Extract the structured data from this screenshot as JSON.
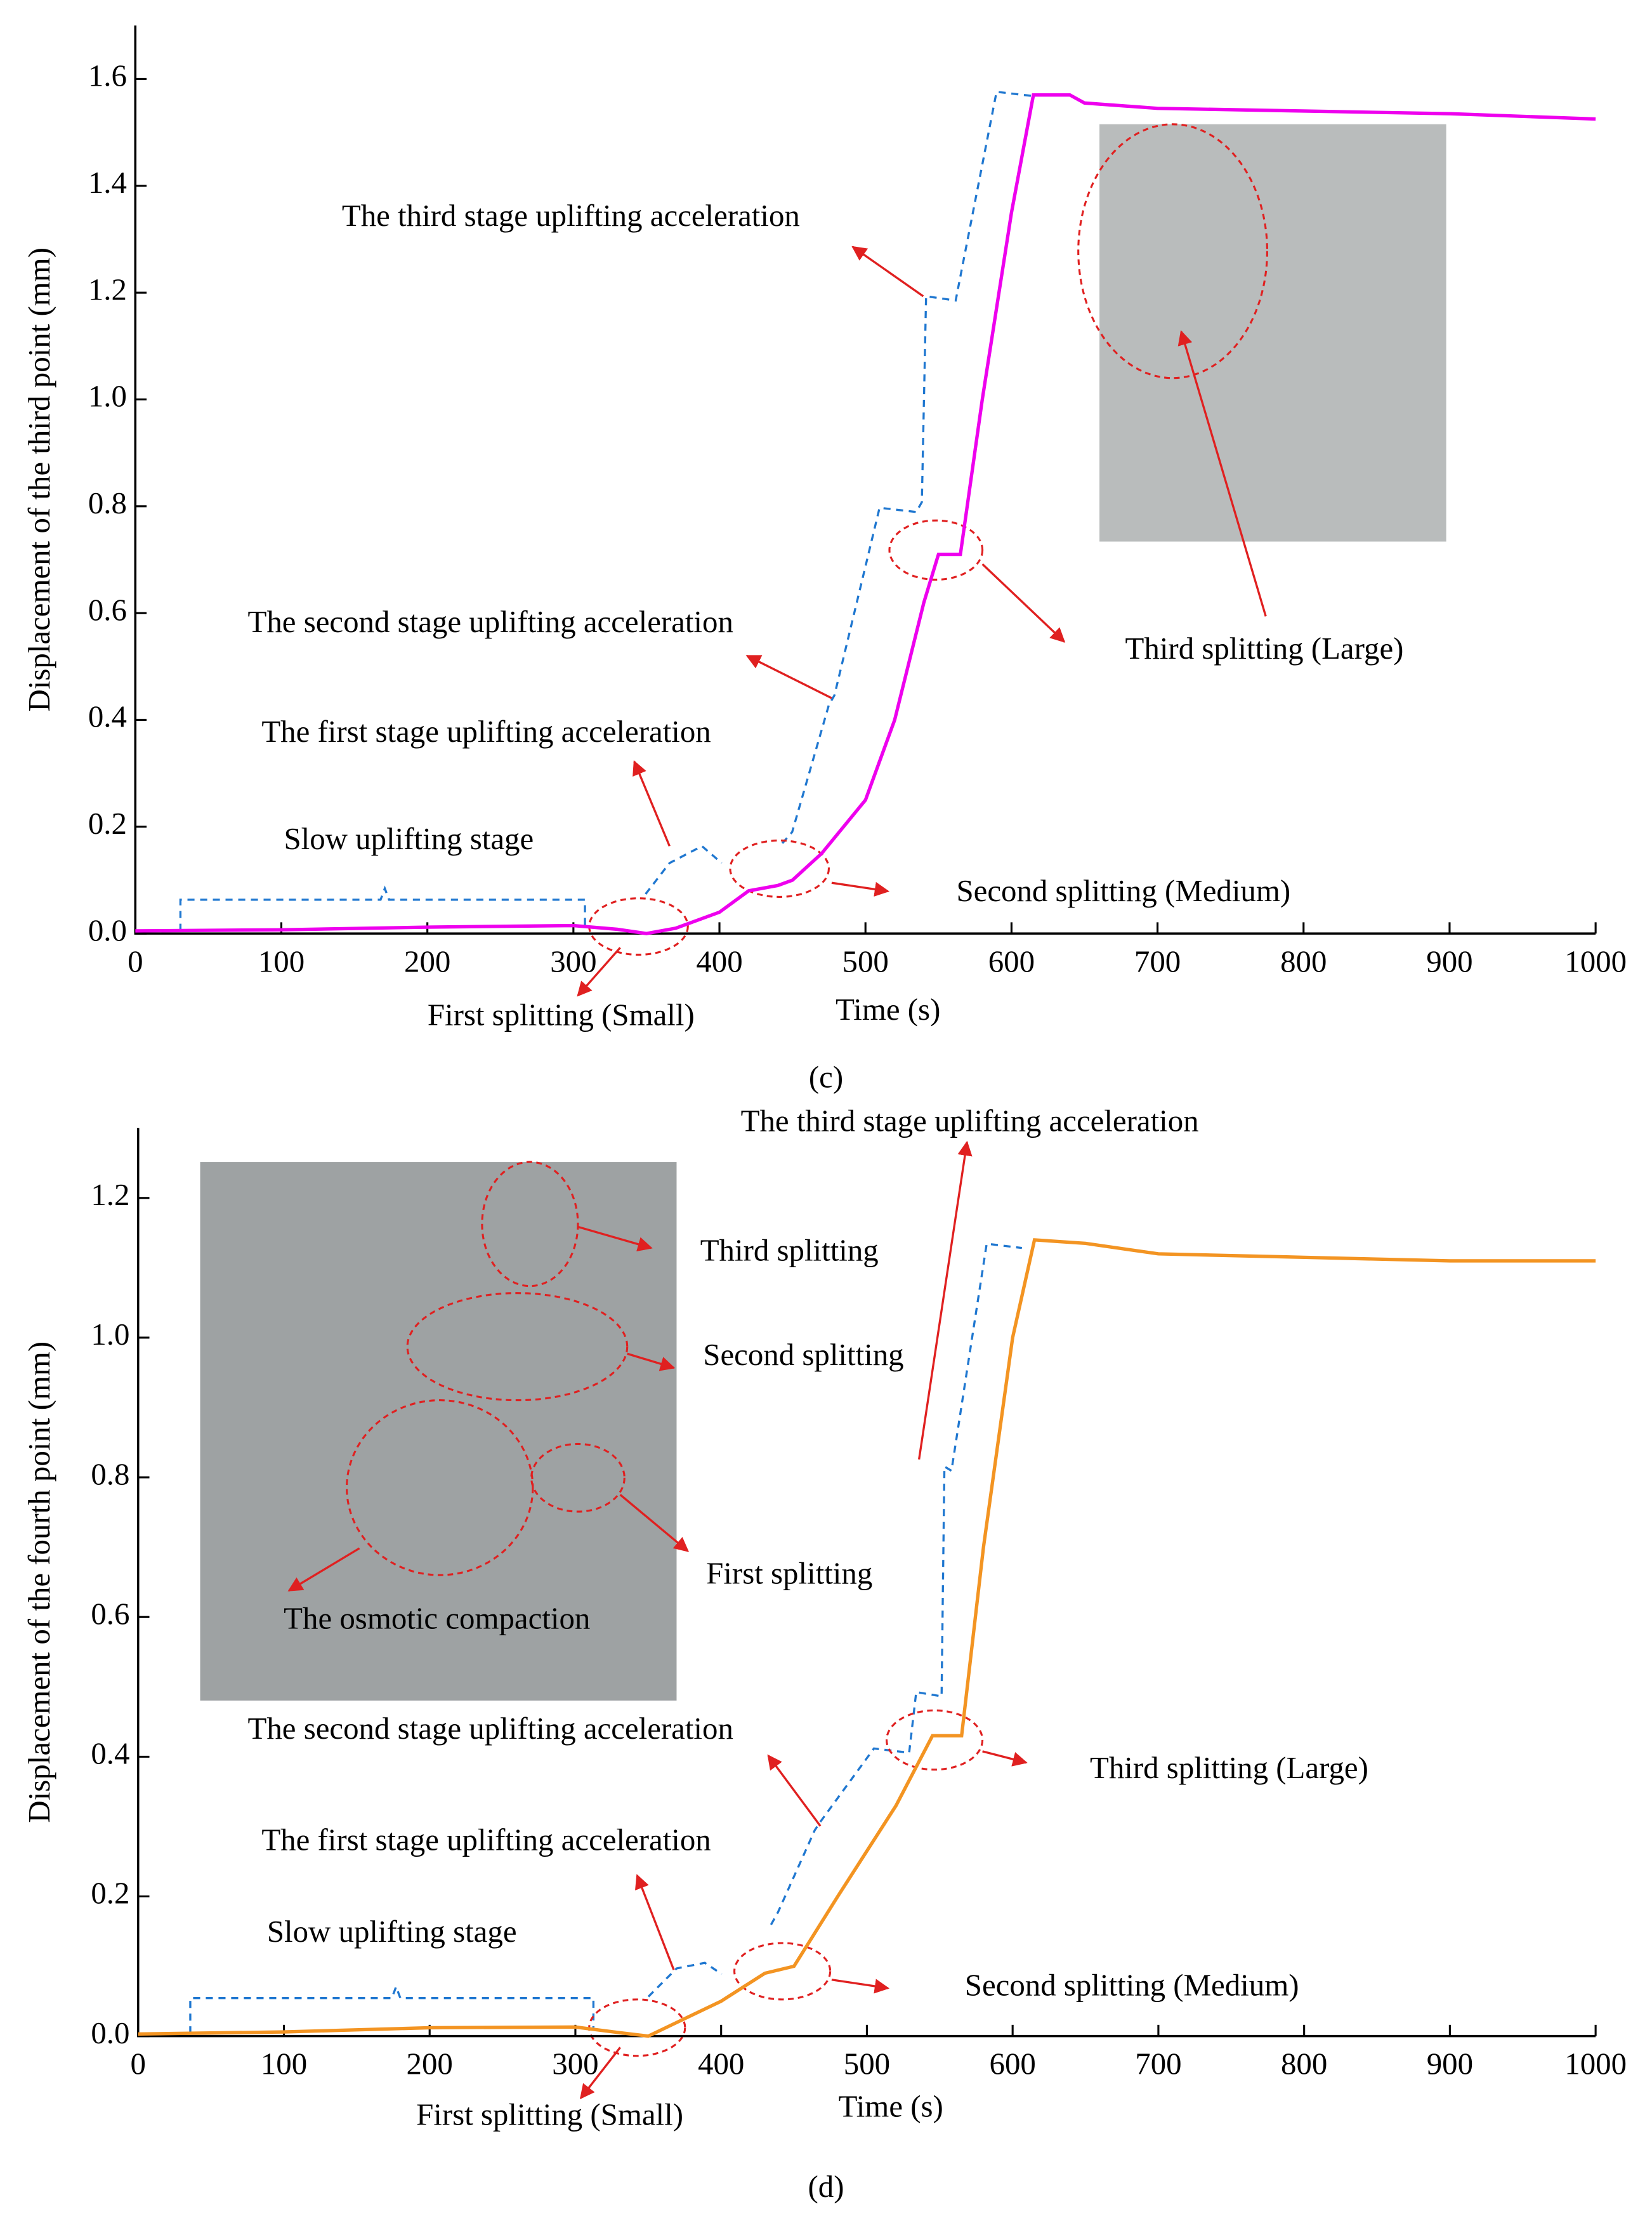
{
  "chart_data": [
    {
      "type": "line",
      "caption": "(c)",
      "xlabel": "Time (s)",
      "ylabel": "Displacement  of the third point (mm)",
      "x": [
        0,
        100,
        200,
        300,
        330,
        350,
        370,
        400,
        420,
        440,
        450,
        470,
        500,
        520,
        540,
        550,
        565,
        580,
        600,
        615,
        640,
        650,
        700,
        800,
        900,
        1000
      ],
      "series": [
        {
          "color": "#ee00ee",
          "values": [
            0.005,
            0.007,
            0.012,
            0.015,
            0.008,
            0.0,
            0.01,
            0.04,
            0.08,
            0.09,
            0.1,
            0.15,
            0.25,
            0.4,
            0.62,
            0.71,
            0.71,
            1.0,
            1.35,
            1.57,
            1.57,
            1.555,
            1.545,
            1.54,
            1.535,
            1.525
          ]
        }
      ],
      "xlim": [
        0,
        1000
      ],
      "ylim": [
        0,
        1.7
      ],
      "xticks": [
        0,
        100,
        200,
        300,
        400,
        500,
        600,
        700,
        800,
        900,
        1000
      ],
      "yticks": [
        {
          "value": 0,
          "label": "0.0"
        },
        0.2,
        0.4,
        0.6,
        0.8,
        {
          "value": 1,
          "label": "1.0"
        },
        1.2,
        1.4,
        1.6
      ],
      "annotations": [
        "The third stage uplifting acceleration",
        "The second stage uplifting acceleration",
        "The first stage uplifting acceleration",
        "Slow uplifting stage",
        "First splitting (Small)",
        "Second splitting (Medium)",
        "Third splitting (Large)"
      ]
    },
    {
      "type": "line",
      "caption": "(d)",
      "xlabel": "Time (s)",
      "ylabel": "Displacement of the fourth point (mm)",
      "x": [
        0,
        100,
        200,
        300,
        330,
        350,
        370,
        400,
        430,
        450,
        480,
        520,
        545,
        565,
        580,
        600,
        615,
        650,
        700,
        800,
        900,
        1000
      ],
      "series": [
        {
          "color": "#f39422",
          "values": [
            0.003,
            0.006,
            0.012,
            0.013,
            0.005,
            0.0,
            0.02,
            0.05,
            0.09,
            0.1,
            0.2,
            0.33,
            0.43,
            0.43,
            0.7,
            1.0,
            1.14,
            1.135,
            1.12,
            1.115,
            1.11,
            1.11
          ]
        }
      ],
      "xlim": [
        0,
        1000
      ],
      "ylim": [
        0,
        1.3
      ],
      "xticks": [
        0,
        100,
        200,
        300,
        400,
        500,
        600,
        700,
        800,
        900,
        1000
      ],
      "yticks": [
        {
          "value": 0,
          "label": "0.0"
        },
        0.2,
        0.4,
        0.6,
        0.8,
        {
          "value": 1,
          "label": "1.0"
        },
        1.2
      ],
      "annotations": [
        "The third stage uplifting acceleration",
        "Third splitting",
        "Second splitting",
        "First splitting",
        "The osmotic compaction",
        "The second stage uplifting acceleration",
        "The first stage uplifting acceleration",
        "Slow uplifting stage",
        "Third splitting (Large)",
        "Second splitting (Medium)",
        "First splitting (Small)"
      ]
    }
  ]
}
